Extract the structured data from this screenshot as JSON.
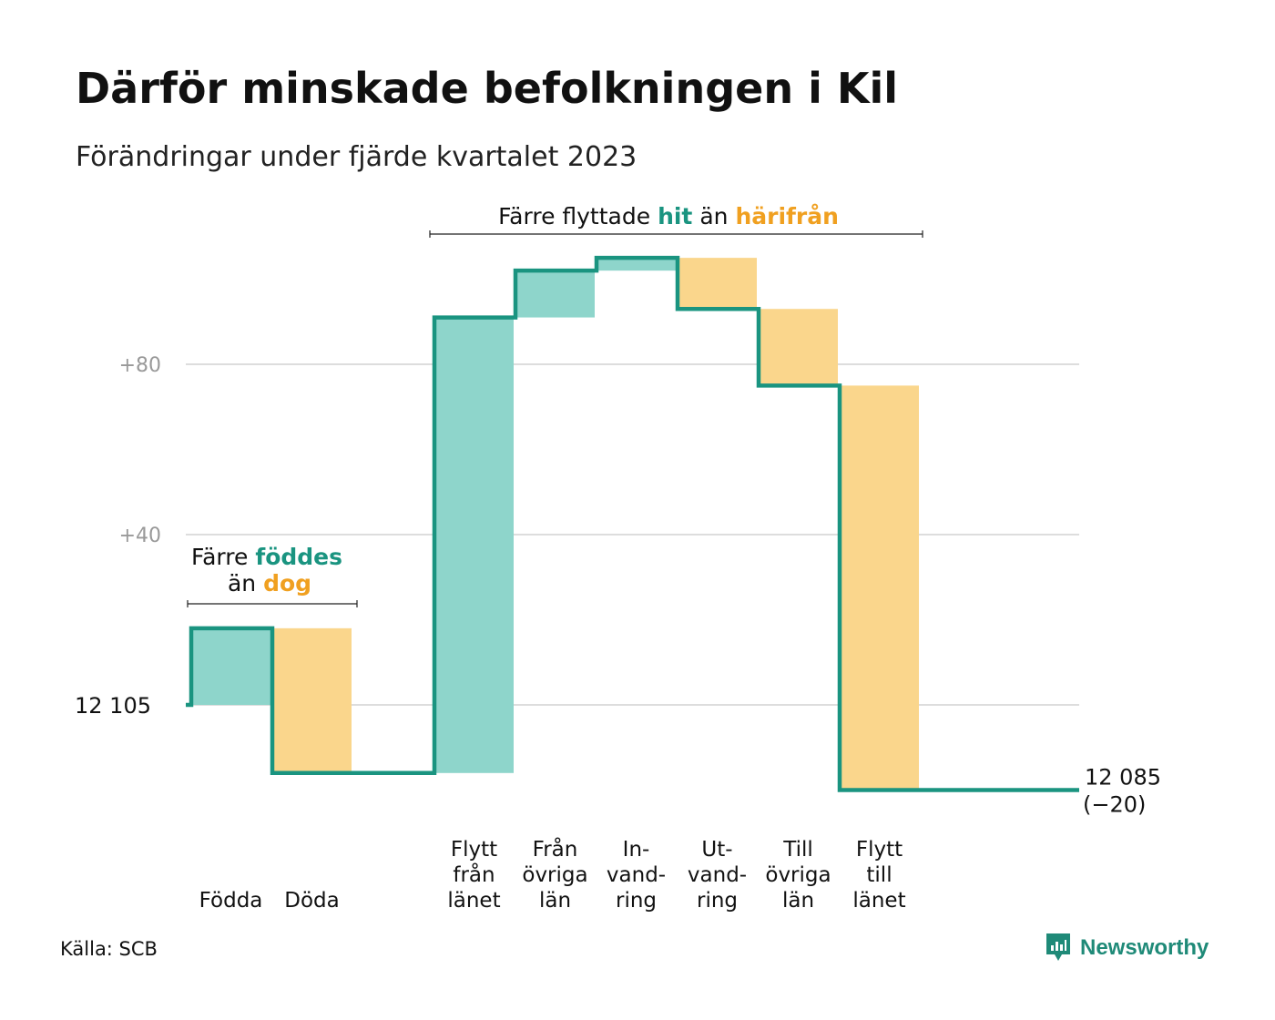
{
  "title": "Därför minskade befolkningen i Kil",
  "subtitle": "Förändringar under fjärde kvartalet 2023",
  "source": "Källa: SCB",
  "brand": "Newsworthy",
  "colors": {
    "inflow": "#8ed5cb",
    "outflow": "#fad68c",
    "line": "#1a9480",
    "inflow_text": "#1a9480",
    "outflow_text": "#f0a020",
    "grid": "#dddddd",
    "axis_text": "#999999"
  },
  "chart_data": {
    "type": "waterfall",
    "start_value": 12105,
    "end_value": 12085,
    "start_label": "12 105",
    "end_label": "12 085",
    "change_label": "(−20)",
    "ylim": [
      -25,
      105
    ],
    "yticks": [
      {
        "value": 40,
        "label": "+40"
      },
      {
        "value": 80,
        "label": "+80"
      }
    ],
    "steps": [
      {
        "name": "Födda",
        "lines": [
          "Födda"
        ],
        "value": 18,
        "kind": "inflow",
        "group": "natural"
      },
      {
        "name": "Döda",
        "lines": [
          "Döda"
        ],
        "value": -34,
        "kind": "outflow",
        "group": "natural"
      },
      {
        "name": "Flytt från länet",
        "lines": [
          "Flytt",
          "från",
          "länet"
        ],
        "value": 107,
        "kind": "inflow",
        "group": "migration"
      },
      {
        "name": "Från övriga län",
        "lines": [
          "Från",
          "övriga",
          "län"
        ],
        "value": 11,
        "kind": "inflow",
        "group": "migration"
      },
      {
        "name": "Invandring",
        "lines": [
          "In-",
          "vand-",
          "ring"
        ],
        "value": 3,
        "kind": "inflow",
        "group": "migration"
      },
      {
        "name": "Utvandring",
        "lines": [
          "Ut-",
          "vand-",
          "ring"
        ],
        "value": -12,
        "kind": "outflow",
        "group": "migration"
      },
      {
        "name": "Till övriga län",
        "lines": [
          "Till",
          "övriga",
          "län"
        ],
        "value": -18,
        "kind": "outflow",
        "group": "migration"
      },
      {
        "name": "Flytt till länet",
        "lines": [
          "Flytt",
          "till",
          "länet"
        ],
        "value": -95,
        "kind": "outflow",
        "group": "migration"
      }
    ],
    "annotations": {
      "natural": {
        "line1_prefix": "Färre",
        "line1_highlight": "föddes",
        "line2_prefix": "än",
        "line2_highlight": "dog"
      },
      "migration": {
        "prefix": "Färre flyttade",
        "highlight1": "hit",
        "middle": "än",
        "highlight2": "härifrån"
      }
    }
  }
}
